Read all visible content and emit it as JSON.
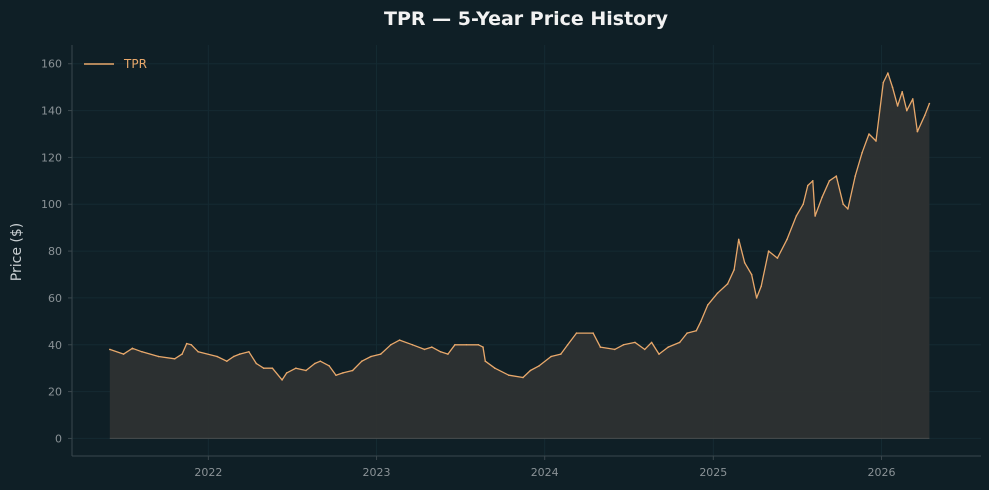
{
  "colors": {
    "background": "#0f1f26",
    "line": "#e8a86b",
    "fill": "#2e3131",
    "text": "#f2f2f2",
    "tick_text": "#8a9296",
    "axis": "#3a474d",
    "grid": "#152a32"
  },
  "chart_data": {
    "type": "area",
    "title": "TPR — 5-Year Price History",
    "xlabel": "",
    "ylabel": "Price ($)",
    "xlim": [
      "2021-03-11",
      "2026-08-05"
    ],
    "ylim": [
      -7.5,
      168
    ],
    "x_ticks": [
      "2022",
      "2023",
      "2024",
      "2025",
      "2026"
    ],
    "y_ticks": [
      0,
      20,
      40,
      60,
      80,
      100,
      120,
      140,
      160
    ],
    "grid": true,
    "legend_position": "top-left",
    "series": [
      {
        "name": "TPR",
        "points": [
          [
            "2021-06-01",
            38
          ],
          [
            "2021-07-01",
            36
          ],
          [
            "2021-07-20",
            38.5
          ],
          [
            "2021-08-10",
            37
          ],
          [
            "2021-09-15",
            35
          ],
          [
            "2021-10-20",
            34
          ],
          [
            "2021-11-05",
            36
          ],
          [
            "2021-11-15",
            40.5
          ],
          [
            "2021-11-25",
            40
          ],
          [
            "2021-12-10",
            37
          ],
          [
            "2022-01-20",
            35
          ],
          [
            "2022-02-10",
            33
          ],
          [
            "2022-02-25",
            35
          ],
          [
            "2022-03-10",
            36
          ],
          [
            "2022-03-30",
            37
          ],
          [
            "2022-04-15",
            32
          ],
          [
            "2022-05-01",
            30
          ],
          [
            "2022-05-20",
            30
          ],
          [
            "2022-06-10",
            25
          ],
          [
            "2022-06-20",
            28
          ],
          [
            "2022-07-10",
            30
          ],
          [
            "2022-08-01",
            29
          ],
          [
            "2022-08-20",
            32
          ],
          [
            "2022-09-01",
            33
          ],
          [
            "2022-09-20",
            31
          ],
          [
            "2022-10-05",
            27
          ],
          [
            "2022-10-20",
            28
          ],
          [
            "2022-11-10",
            29
          ],
          [
            "2022-11-30",
            33
          ],
          [
            "2022-12-20",
            35
          ],
          [
            "2023-01-10",
            36
          ],
          [
            "2023-02-01",
            40
          ],
          [
            "2023-02-20",
            42
          ],
          [
            "2023-03-20",
            40
          ],
          [
            "2023-04-15",
            38
          ],
          [
            "2023-05-01",
            39
          ],
          [
            "2023-05-20",
            37
          ],
          [
            "2023-06-05",
            36
          ],
          [
            "2023-06-20",
            40
          ],
          [
            "2023-07-15",
            40
          ],
          [
            "2023-08-10",
            40
          ],
          [
            "2023-08-20",
            39
          ],
          [
            "2023-08-25",
            33
          ],
          [
            "2023-09-15",
            30
          ],
          [
            "2023-10-15",
            27
          ],
          [
            "2023-11-15",
            26
          ],
          [
            "2023-12-01",
            29
          ],
          [
            "2023-12-20",
            31
          ],
          [
            "2024-01-15",
            35
          ],
          [
            "2024-02-05",
            36
          ],
          [
            "2024-02-20",
            40
          ],
          [
            "2024-03-10",
            45
          ],
          [
            "2024-04-15",
            45
          ],
          [
            "2024-05-01",
            39
          ],
          [
            "2024-06-01",
            38
          ],
          [
            "2024-06-20",
            40
          ],
          [
            "2024-07-15",
            41
          ],
          [
            "2024-08-05",
            38
          ],
          [
            "2024-08-20",
            41
          ],
          [
            "2024-09-05",
            36
          ],
          [
            "2024-09-25",
            39
          ],
          [
            "2024-10-20",
            41
          ],
          [
            "2024-11-05",
            45
          ],
          [
            "2024-11-25",
            46
          ],
          [
            "2024-12-05",
            50
          ],
          [
            "2024-12-20",
            57
          ],
          [
            "2025-01-10",
            62
          ],
          [
            "2025-02-01",
            66
          ],
          [
            "2025-02-15",
            72
          ],
          [
            "2025-02-25",
            85
          ],
          [
            "2025-03-10",
            75
          ],
          [
            "2025-03-25",
            70
          ],
          [
            "2025-04-05",
            60
          ],
          [
            "2025-04-15",
            65
          ],
          [
            "2025-05-01",
            80
          ],
          [
            "2025-05-20",
            77
          ],
          [
            "2025-06-10",
            85
          ],
          [
            "2025-06-30",
            95
          ],
          [
            "2025-07-15",
            100
          ],
          [
            "2025-07-25",
            108
          ],
          [
            "2025-08-05",
            110
          ],
          [
            "2025-08-10",
            95
          ],
          [
            "2025-08-25",
            103
          ],
          [
            "2025-09-10",
            110
          ],
          [
            "2025-09-25",
            112
          ],
          [
            "2025-10-10",
            100
          ],
          [
            "2025-10-20",
            98
          ],
          [
            "2025-11-05",
            112
          ],
          [
            "2025-11-20",
            122
          ],
          [
            "2025-12-05",
            130
          ],
          [
            "2025-12-20",
            127
          ],
          [
            "2026-01-05",
            152
          ],
          [
            "2026-01-15",
            156
          ],
          [
            "2026-01-25",
            150
          ],
          [
            "2026-02-05",
            142
          ],
          [
            "2026-02-15",
            148
          ],
          [
            "2026-02-25",
            140
          ],
          [
            "2026-03-10",
            145
          ],
          [
            "2026-03-20",
            131
          ],
          [
            "2026-04-05",
            138
          ],
          [
            "2026-04-15",
            143
          ]
        ]
      }
    ]
  }
}
